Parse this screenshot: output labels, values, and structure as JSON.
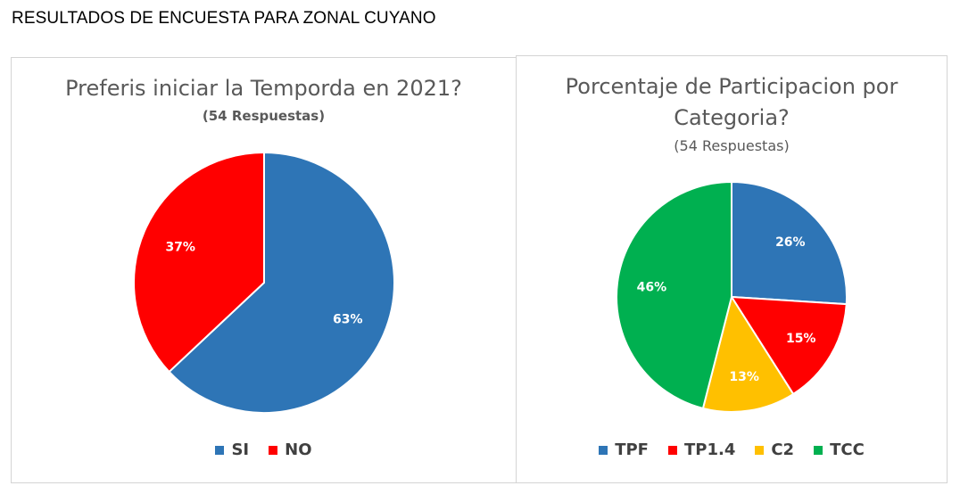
{
  "page": {
    "title": "RESULTADOS DE ENCUESTA PARA ZONAL CUYANO"
  },
  "chart_data": [
    {
      "type": "pie",
      "title": "Preferis iniciar la Temporda en 2021?",
      "subtitle": "(54 Respuestas)",
      "categories": [
        "SI",
        "NO"
      ],
      "values": [
        63,
        37
      ],
      "labels": [
        "63%",
        "37%"
      ],
      "colors": [
        "#2E75B6",
        "#FF0000"
      ],
      "legend_position": "bottom"
    },
    {
      "type": "pie",
      "title": "Porcentaje de Participacion por Categoria?",
      "title_line1": "Porcentaje de Participacion por",
      "title_line2": "Categoria?",
      "subtitle": "(54 Respuestas)",
      "categories": [
        "TPF",
        "TP1.4",
        "C2",
        "TCC"
      ],
      "values": [
        26,
        15,
        13,
        46
      ],
      "labels": [
        "26%",
        "15%",
        "13%",
        "46%"
      ],
      "colors": [
        "#2E75B6",
        "#FF0000",
        "#FFC000",
        "#00B050"
      ],
      "legend_position": "bottom"
    }
  ]
}
